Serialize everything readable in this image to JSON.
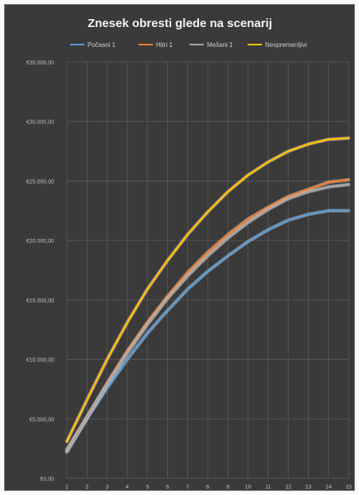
{
  "chart_data": {
    "type": "line",
    "title": "Znesek obresti glede na scenarij",
    "xlabel": "",
    "ylabel": "",
    "x": [
      1,
      2,
      3,
      4,
      5,
      6,
      7,
      8,
      9,
      10,
      11,
      12,
      13,
      14,
      15
    ],
    "ylim": [
      0,
      35000
    ],
    "y_ticks": [
      "€0,00",
      "€5.000,00",
      "€10.000,00",
      "€15.000,00",
      "€20.000,00",
      "€25.000,00",
      "€30.000,00",
      "€35.000,00"
    ],
    "grid": true,
    "legend_position": "top",
    "series": [
      {
        "name": "Počasni 1",
        "color": "#5b9bd5",
        "values": [
          2200,
          5000,
          7600,
          10000,
          12200,
          14100,
          15900,
          17400,
          18700,
          19900,
          20900,
          21700,
          22200,
          22500,
          22500
        ]
      },
      {
        "name": "Hitri 1",
        "color": "#ed7d31",
        "values": [
          2400,
          5200,
          8000,
          10700,
          13100,
          15300,
          17300,
          19000,
          20500,
          21800,
          22800,
          23700,
          24300,
          24900,
          25100
        ]
      },
      {
        "name": "Mešani 1",
        "color": "#a5a5a5",
        "values": [
          2300,
          5100,
          7900,
          10500,
          12900,
          15100,
          17000,
          18700,
          20200,
          21500,
          22600,
          23500,
          24100,
          24500,
          24700
        ]
      },
      {
        "name": "Nespremenljivi",
        "color": "#ffc000",
        "values": [
          3100,
          6600,
          10000,
          13100,
          15900,
          18300,
          20500,
          22400,
          24100,
          25500,
          26600,
          27500,
          28100,
          28500,
          28600
        ]
      }
    ]
  }
}
